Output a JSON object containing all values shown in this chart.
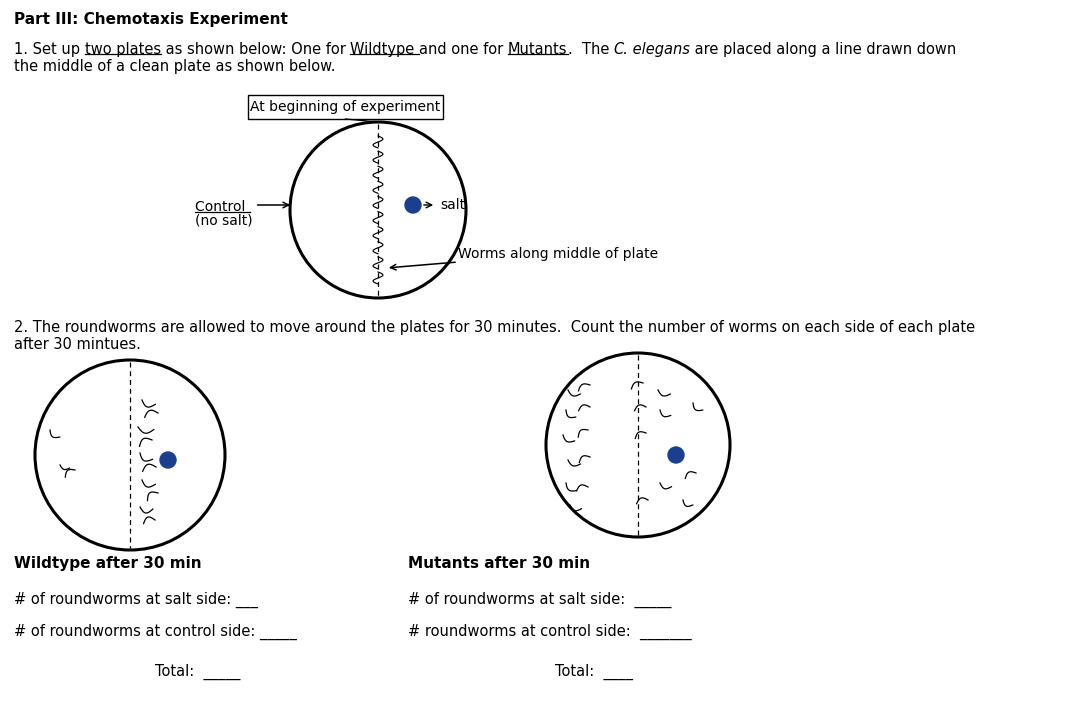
{
  "title": "Part III: Chemotaxis Experiment",
  "para1_line1_prefix": "1. Set up ",
  "para1_underline1": "two plates",
  "para1_mid1": " as shown below: One for ",
  "para1_underline2": "Wildtype ",
  "para1_mid2": "and one for ",
  "para1_underline3": "Mutants",
  "para1_mid3": ".  The ",
  "para1_italic1": "C.",
  "para1_italic2": " elegans",
  "para1_end": " are placed along a line drawn down",
  "para1_line2": "the middle of a clean plate as shown below.",
  "box_label": "At beginning of experiment",
  "control_label1": "Control ",
  "control_label2": "(no salt)",
  "salt_label": "salt",
  "worms_label": "Worms along middle of plate",
  "para2_line1": "2. The roundworms are allowed to move around the plates for 30 minutes.  Count the number of worms on each side of each plate",
  "para2_line2": "after 30 mintues.",
  "wildtype_label": "Wildtype after 30 min",
  "mutants_label": "Mutants after 30 min",
  "wt_salt": "# of roundworms at salt side: ___",
  "wt_control": "# of roundworms at control side: _____",
  "wt_total": "Total:  _____",
  "mut_salt": "# of roundworms at salt side:  _____",
  "mut_control": "# roundworms at control side:  _______",
  "mut_total": "Total:  ____",
  "blue_color": "#1a3f8f",
  "bg_color": "#ffffff",
  "font_size_body": 10.5,
  "font_size_title": 11,
  "font_size_label": 11
}
